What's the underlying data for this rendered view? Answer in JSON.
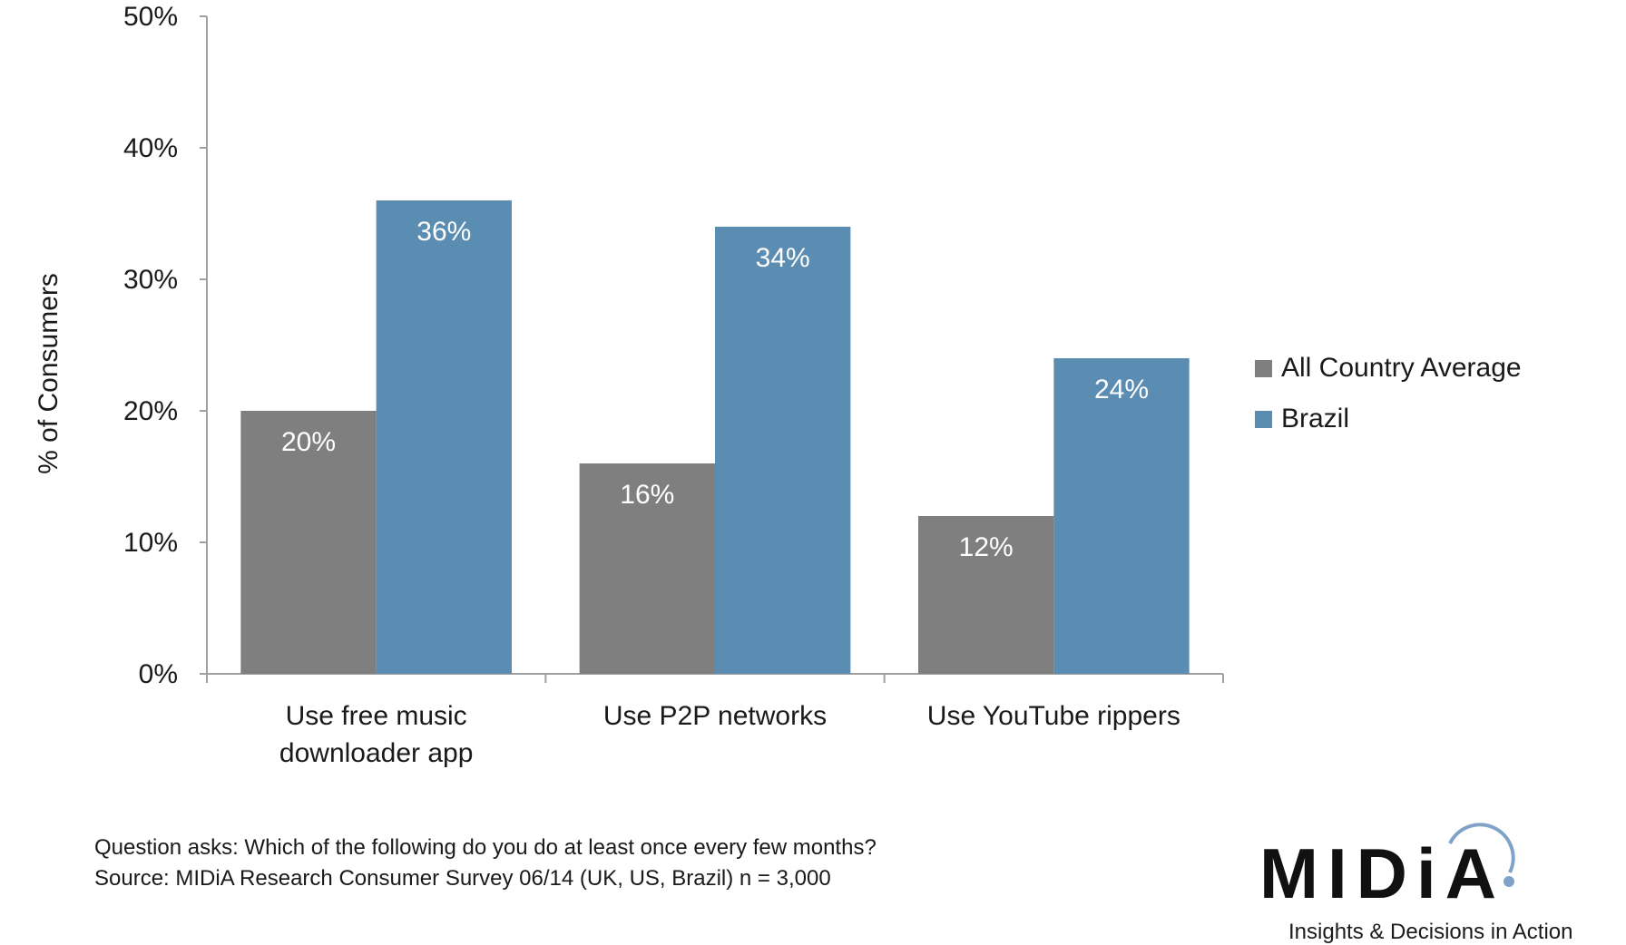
{
  "chart_data": {
    "type": "bar",
    "title": "",
    "xlabel": "",
    "ylabel": "% of Consumers",
    "ylim": [
      0,
      50
    ],
    "yticks": [
      "0%",
      "10%",
      "20%",
      "30%",
      "40%",
      "50%"
    ],
    "ytick_values": [
      0,
      10,
      20,
      30,
      40,
      50
    ],
    "categories": [
      [
        "Use free music",
        "downloader app"
      ],
      [
        "Use P2P networks"
      ],
      [
        "Use YouTube rippers"
      ]
    ],
    "series": [
      {
        "name": "All Country Average",
        "values": [
          20,
          16,
          12
        ],
        "labels": [
          "20%",
          "16%",
          "12%"
        ]
      },
      {
        "name": "Brazil",
        "values": [
          36,
          34,
          24
        ],
        "labels": [
          "36%",
          "34%",
          "24%"
        ]
      }
    ],
    "grid": false,
    "legend_position": "right"
  },
  "colors": {
    "series": [
      "#7f7f7f",
      "#5b8db2"
    ],
    "axis": "#a0a0a0"
  },
  "footnote": {
    "line1": "Question asks: Which of the following do you do at least once every few months?",
    "line2": "Source: MIDiA Research Consumer Survey 06/14 (UK, US, Brazil) n = 3,000"
  },
  "logo": {
    "wordmark": "MIDiA",
    "tagline": "Insights & Decisions in Action"
  }
}
